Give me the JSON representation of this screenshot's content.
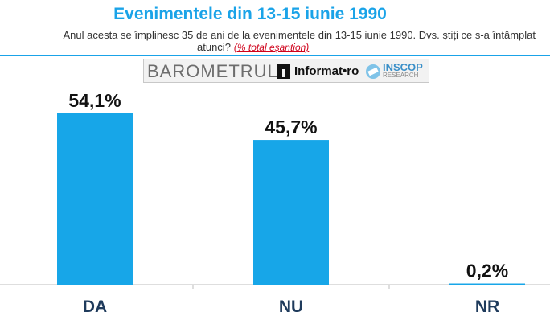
{
  "header": {
    "title": "Evenimentele din 13-15 iunie 1990",
    "question_line1": "Anul acesta se împlinesc 35 de ani de la evenimentele din 13-15 iunie 1990. Dvs. știți ce s-a întâmplat",
    "question_line2": "atunci?",
    "sample_note": "(% total eșantion)"
  },
  "logos": {
    "barometrul": "BAROMETRUL",
    "informat": "Informat•ro",
    "inscop": "INSCOP",
    "research": "RESEARCH"
  },
  "colors": {
    "accent": "#1aa3e8",
    "bar": "#17a6e8",
    "sample_note": "#d0021b",
    "category": "#1f3b5c"
  },
  "chart_data": {
    "type": "bar",
    "categories": [
      "DA",
      "NU",
      "NR"
    ],
    "values": [
      54.1,
      45.7,
      0.2
    ],
    "value_labels": [
      "54,1%",
      "45,7%",
      "0,2%"
    ],
    "ylim": [
      0,
      54.1
    ],
    "grid": false,
    "legend": "none"
  }
}
